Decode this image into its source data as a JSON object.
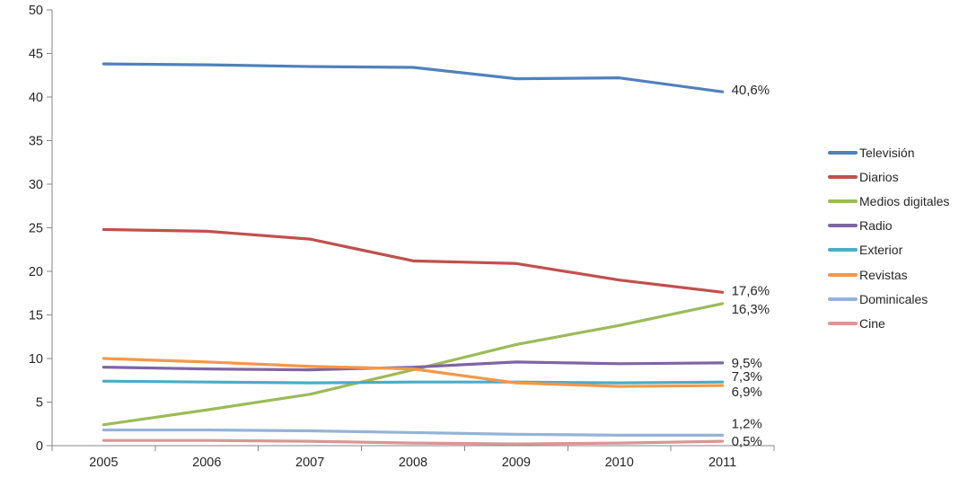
{
  "chart_data": {
    "type": "line",
    "title": "",
    "xlabel": "",
    "ylabel": "",
    "x_categories": [
      "2005",
      "2006",
      "2007",
      "2008",
      "2009",
      "2010",
      "2011"
    ],
    "y_ticks": [
      "0",
      "5",
      "10",
      "15",
      "20",
      "25",
      "30",
      "35",
      "40",
      "45",
      "50"
    ],
    "ylim": [
      0,
      50
    ],
    "grid": false,
    "legend_position": "right",
    "series": [
      {
        "name": "Televisión",
        "color": "#4F81BD",
        "values": [
          43.8,
          43.7,
          43.5,
          43.4,
          42.1,
          42.2,
          40.6
        ],
        "end_label": "40,6%",
        "label_dy": -2
      },
      {
        "name": "Diarios",
        "color": "#C0504D",
        "values": [
          24.8,
          24.6,
          23.7,
          21.2,
          20.9,
          19.0,
          17.6
        ],
        "end_label": "17,6%",
        "label_dy": -2
      },
      {
        "name": "Medios digitales",
        "color": "#9BBB59",
        "values": [
          2.4,
          4.1,
          5.9,
          8.7,
          11.6,
          13.8,
          16.3
        ],
        "end_label": "16,3%",
        "label_dy": 6
      },
      {
        "name": "Radio",
        "color": "#8064A2",
        "values": [
          9.0,
          8.8,
          8.7,
          9.0,
          9.6,
          9.4,
          9.5
        ],
        "end_label": "9,5%",
        "label_dy": 0
      },
      {
        "name": "Exterior",
        "color": "#4BACC6",
        "values": [
          7.4,
          7.3,
          7.2,
          7.3,
          7.3,
          7.2,
          7.3
        ],
        "end_label": "7,3%",
        "label_dy": -6
      },
      {
        "name": "Revistas",
        "color": "#F79646",
        "values": [
          10.0,
          9.6,
          9.1,
          8.8,
          7.2,
          6.8,
          6.9
        ],
        "end_label": "6,9%",
        "label_dy": 7
      },
      {
        "name": "Dominicales",
        "color": "#95B3D7",
        "values": [
          1.8,
          1.8,
          1.7,
          1.5,
          1.3,
          1.2,
          1.2
        ],
        "end_label": "1,2%",
        "label_dy": -13
      },
      {
        "name": "Cine",
        "color": "#D99694",
        "values": [
          0.6,
          0.6,
          0.5,
          0.3,
          0.2,
          0.3,
          0.5
        ],
        "end_label": "0,5%",
        "label_dy": 0
      }
    ]
  },
  "styles": {
    "axis_color": "#868686",
    "text_color": "#262626",
    "background": "#FFFFFF"
  }
}
